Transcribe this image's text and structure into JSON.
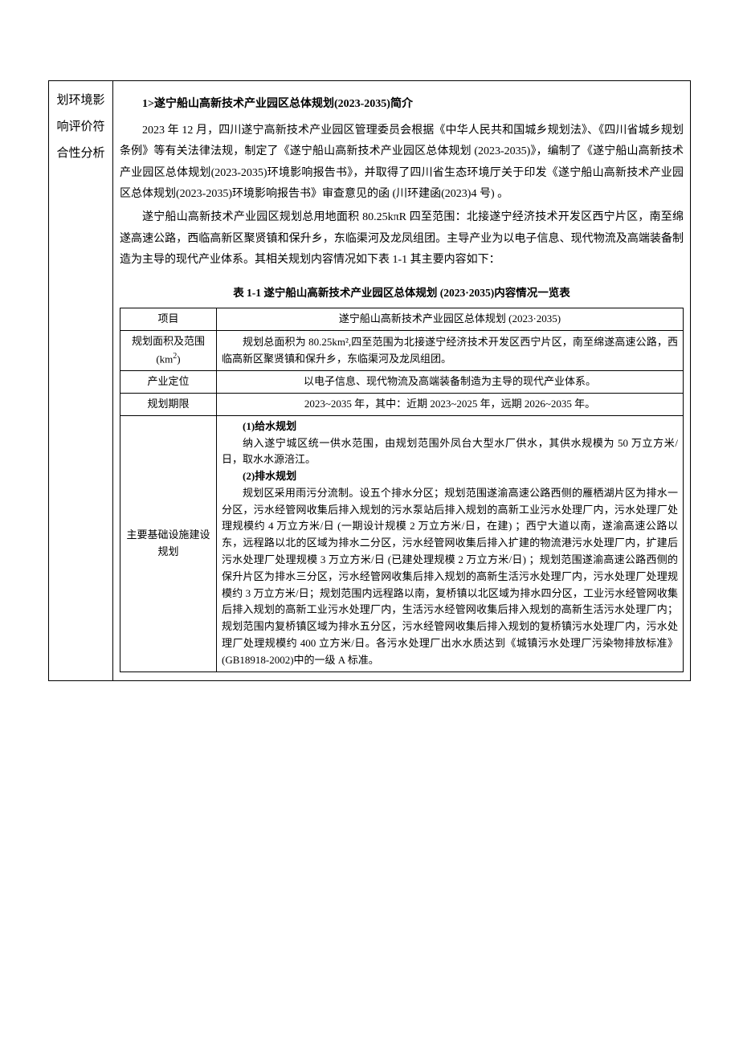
{
  "leftColumn": "划环境影响评价符合性分析",
  "intro": {
    "title": "1>遂宁船山高新技术产业园区总体规划(2023-2035)简介",
    "p1": "2023 年 12 月，四川遂宁高新技术产业园区管理委员会根据《中华人民共和国城乡规划法》、《四川省城乡规划条例》等有关法律法规，制定了《遂宁船山高新技术产业园区总体规划 (2023-2035)》，编制了《遂宁船山高新技术产业园区总体规划(2023-2035)环境影响报告书》，并取得了四川省生态环境厅关于印发《遂宁船山高新技术产业园区总体规划(2023-2035)环境影响报告书》审查意见的函 (川环建函(2023)4 号) 。",
    "p2": "遂宁船山高新技术产业园区规划总用地面积 80.25kπR 四至范围：北接遂宁经济技术开发区西宁片区，南至绵遂高速公路，西临高新区聚贤镇和保升乡，东临渠河及龙凤组团。主导产业为以电子信息、现代物流及高端装备制造为主导的现代产业体系。其相关规划内容情况如下表 1-1 其主要内容如下："
  },
  "innerTable": {
    "caption": "表 1-1 遂宁船山高新技术产业园区总体规划 (2023·2035)内容情况一览表",
    "headers": {
      "col1": "项目",
      "col2": "遂宁船山高新技术产业园区总体规划 (2023·2035)"
    },
    "rows": {
      "area": {
        "label": "规划面积及范围(km²)",
        "value": "规划总面积为 80.25km²,四至范围为北接遂宁经济技术开发区西宁片区，南至绵遂高速公路，西临高新区聚贤镇和保升乡，东临渠河及龙凤组团。"
      },
      "industry": {
        "label": "产业定位",
        "value": "以电子信息、现代物流及高端装备制造为主导的现代产业体系。"
      },
      "period": {
        "label": "规划期限",
        "value": "2023~2035 年，其中：近期 2023~2025 年，远期 2026~2035 年。"
      },
      "infra": {
        "label": "主要基础设施建设规划",
        "s1title": "(1)给水规划",
        "s1para": "纳入遂宁城区统一供水范围，由规划范围外凤台大型水厂供水，其供水规模为 50 万立方米/日，取水水源涪江。",
        "s2title": "(2)排水规划",
        "s2para": "规划区采用雨污分流制。设五个排水分区；规划范围遂渝高速公路西侧的雁栖湖片区为排水一分区，污水经管网收集后排入规划的污水泵站后排入规划的高新工业污水处理厂内，污水处理厂处理规模约 4 万立方米/日 (一期设计规模 2 万立方米/日，在建) ；西宁大道以南，遂渝高速公路以东，远程路以北的区域为排水二分区，污水经管网收集后排入扩建的物流港污水处理厂内，扩建后污水处理厂处理规模 3 万立方米/日 (已建处理规模 2 万立方米/日) ；规划范围遂渝高速公路西侧的保升片区为排水三分区，污水经管网收集后排入规划的高新生活污水处理厂内，污水处理厂处理规模约 3 万立方米/日；规划范围内远程路以南，复桥镇以北区域为排水四分区，工业污水经管网收集后排入规划的高新工业污水处理厂内，生活污水经管网收集后排入规划的高新生活污水处理厂内；规划范围内复桥镇区域为排水五分区，污水经管网收集后排入规划的复桥镇污水处理厂内，污水处理厂处理规模约 400 立方米/日。各污水处理厂出水水质达到《城镇污水处理厂污染物排放标准》(GB18918-2002)中的一级 A 标准。"
      }
    }
  }
}
